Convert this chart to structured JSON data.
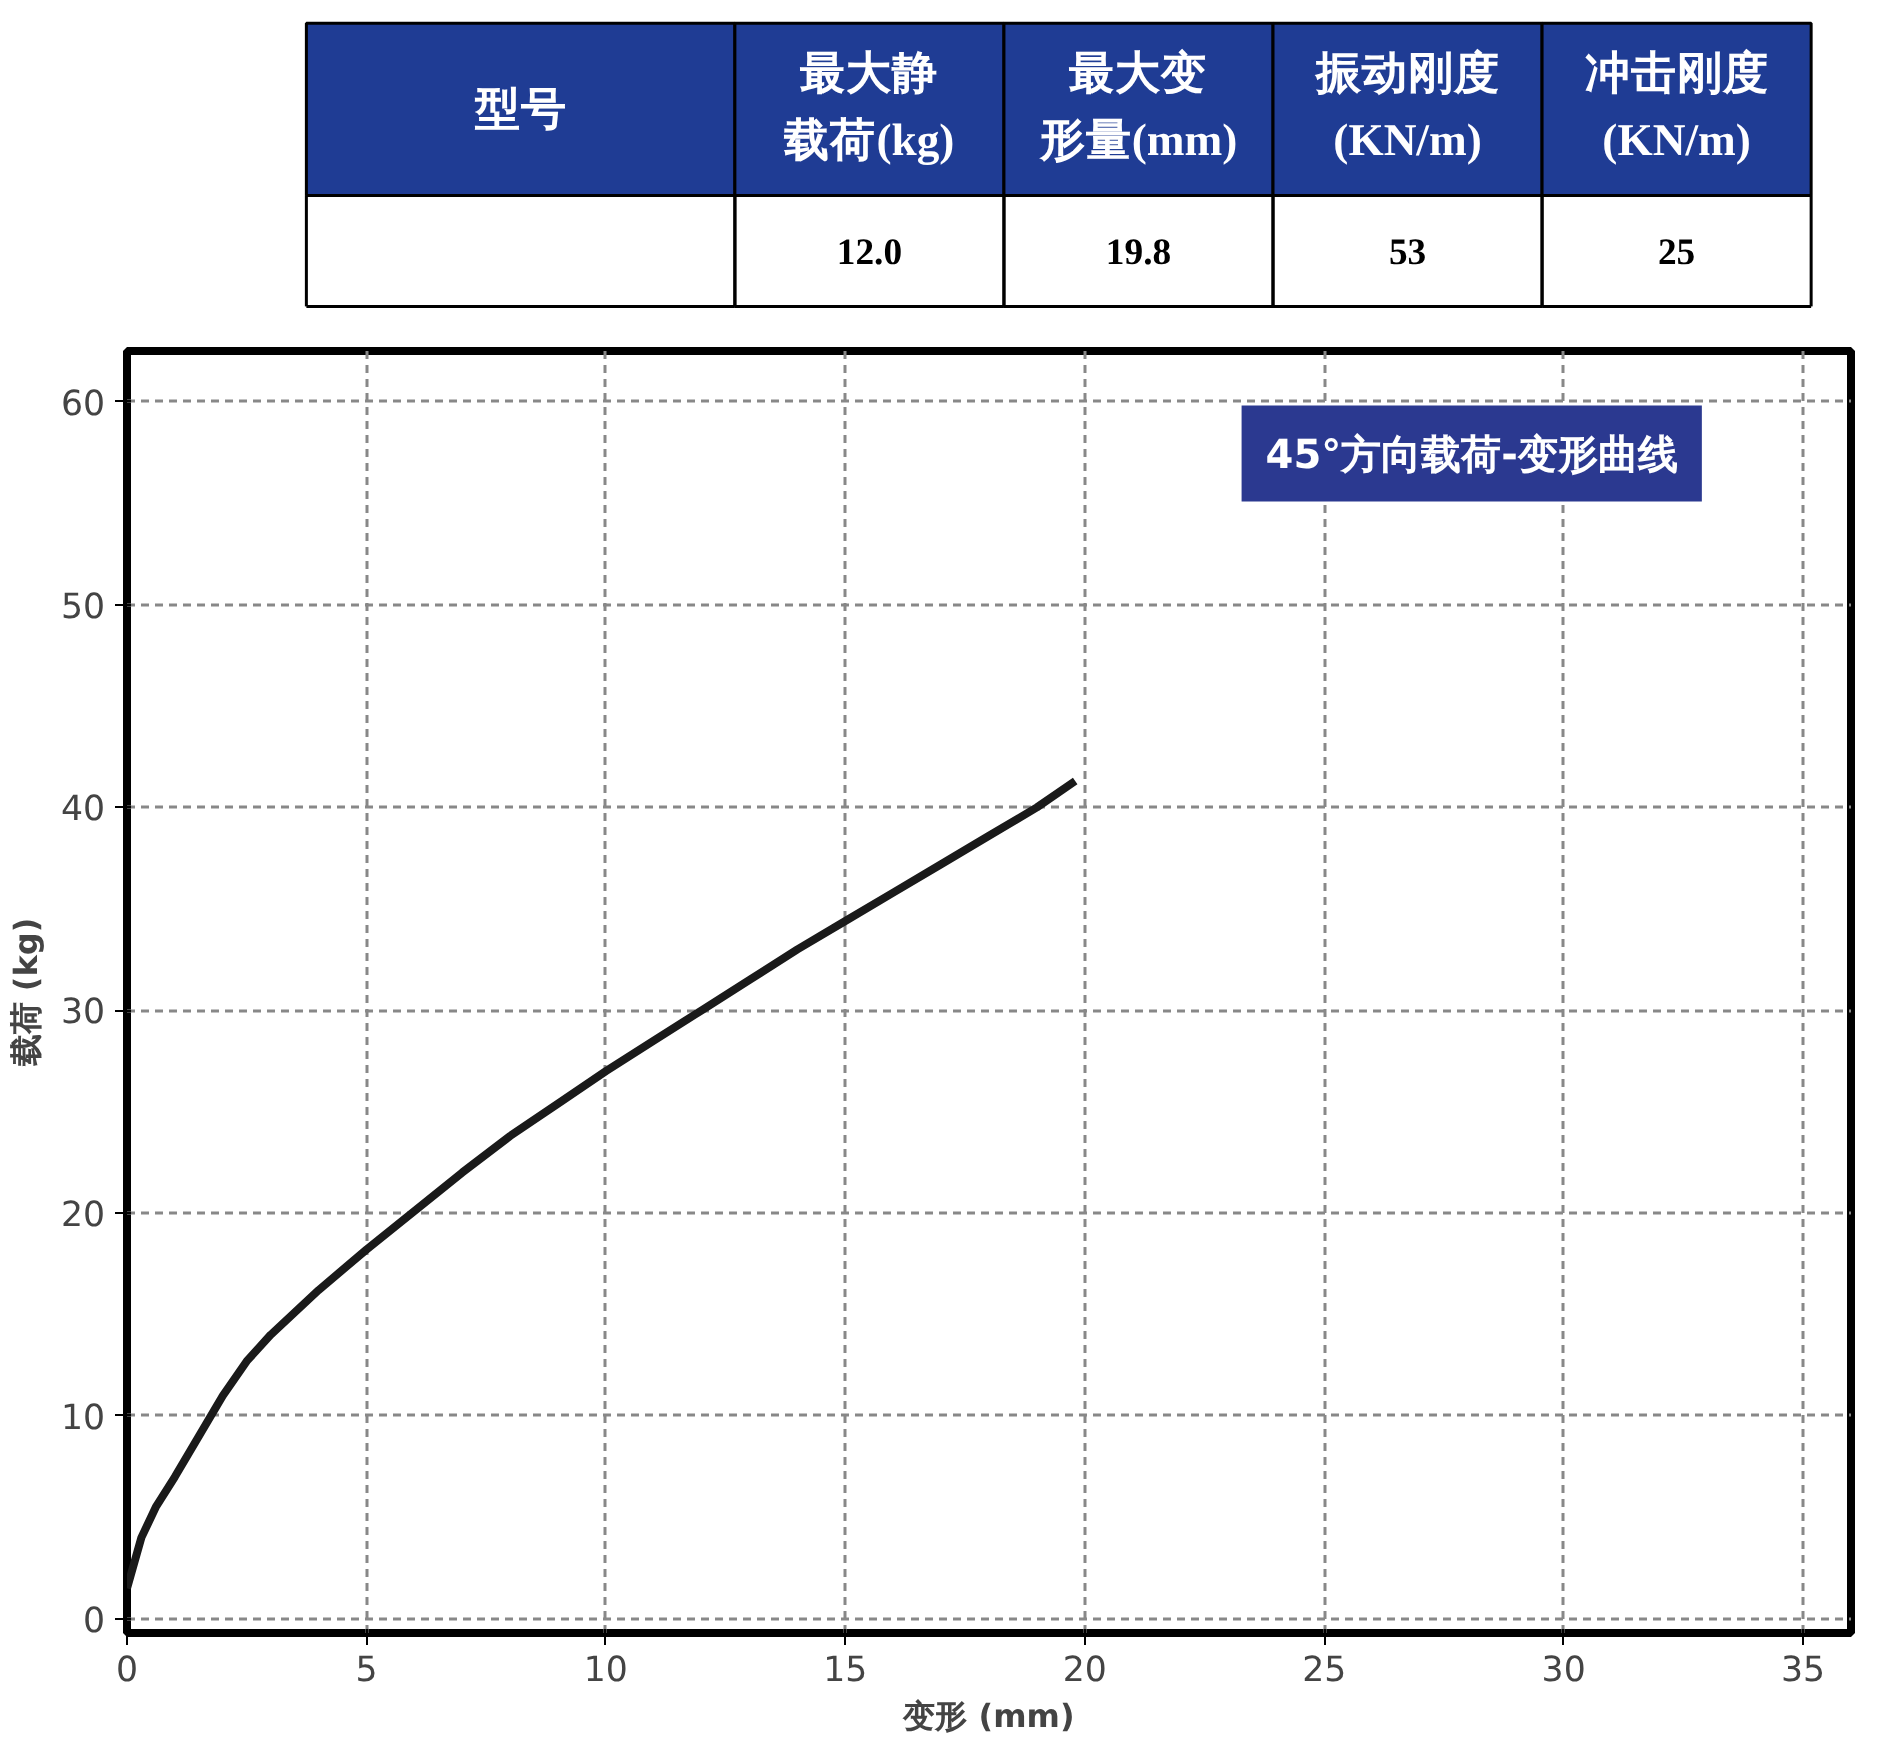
{
  "chart_data": [
    {
      "type": "other",
      "categories": [
        "型号",
        "最大静载荷(kg)",
        "最大变形量(mm)",
        "振动刚度(KN/m)",
        "冲击刚度(KN/m)"
      ],
      "value_labels": [
        null,
        "12.0",
        "19.8",
        "53",
        "25"
      ],
      "color": "#1f3c94"
    },
    {
      "type": "line",
      "title": "45°方向载荷-变形曲线",
      "xlabel": "变形 (mm)",
      "ylabel": "载荷 (kg)",
      "x": [
        0,
        0.3,
        0.6,
        1,
        1.5,
        2,
        2.5,
        3,
        4,
        5,
        6,
        7,
        8,
        9,
        10,
        11,
        12,
        13,
        14,
        15,
        16,
        17,
        18,
        19,
        19.8
      ],
      "series": [
        {
          "color": "#1a1a1a",
          "values": [
            1.5,
            4,
            5.5,
            7,
            9,
            11,
            12.7,
            14,
            16.2,
            18.2,
            20.1,
            22,
            23.8,
            25.4,
            27,
            28.5,
            30,
            31.5,
            33,
            34.4,
            35.8,
            37.2,
            38.6,
            40,
            41.3
          ]
        }
      ],
      "xlim": [
        0,
        36
      ],
      "ylim": [
        -0.7,
        62.5
      ],
      "xticks": [
        0,
        5,
        10,
        15,
        20,
        25,
        30,
        35
      ],
      "yticks": [
        0,
        10,
        20,
        30,
        40,
        50,
        60
      ],
      "grid": true,
      "line_style": "solid",
      "marker": "none"
    }
  ]
}
